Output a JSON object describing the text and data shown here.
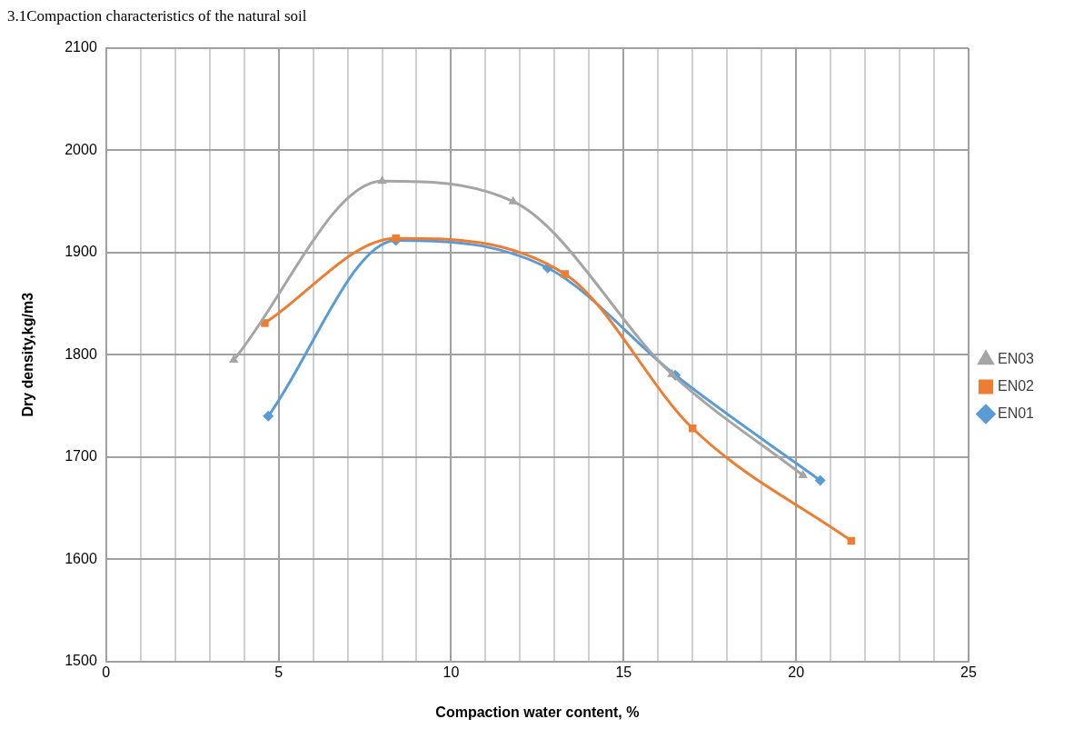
{
  "chart_data": {
    "type": "line",
    "title": "3.1Compaction characteristics of the natural soil",
    "xlabel": "Compaction water content, %",
    "ylabel": "Dry density,kg/m3",
    "xlim": [
      0,
      25
    ],
    "xticks": [
      0,
      {
        "value": 1,
        "label": null
      },
      {
        "value": 2,
        "label": null
      },
      {
        "value": 3,
        "label": null
      },
      {
        "value": 4,
        "label": null
      },
      5,
      {
        "value": 6,
        "label": null
      },
      {
        "value": 7,
        "label": null
      },
      {
        "value": 8,
        "label": null
      },
      {
        "value": 9,
        "label": null
      },
      10,
      {
        "value": 11,
        "label": null
      },
      {
        "value": 12,
        "label": null
      },
      {
        "value": 13,
        "label": null
      },
      {
        "value": 14,
        "label": null
      },
      15,
      {
        "value": 16,
        "label": null
      },
      {
        "value": 17,
        "label": null
      },
      {
        "value": 18,
        "label": null
      },
      {
        "value": 19,
        "label": null
      },
      20,
      {
        "value": 21,
        "label": null
      },
      {
        "value": 22,
        "label": null
      },
      {
        "value": 23,
        "label": null
      },
      {
        "value": 24,
        "label": null
      },
      25
    ],
    "ylim": [
      1500,
      2100
    ],
    "yticks": [
      1500,
      1600,
      1700,
      1800,
      1900,
      2000,
      2100
    ],
    "grid": true,
    "legend": "right",
    "series": [
      {
        "name": "EN01",
        "color": "#5b9bd5",
        "marker": "diamond",
        "x": [
          4.7,
          8.4,
          12.8,
          16.5,
          20.7
        ],
        "values": [
          1740,
          1912,
          1885,
          1780,
          1677
        ]
      },
      {
        "name": "EN02",
        "color": "#ed7d31",
        "marker": "square",
        "x": [
          4.6,
          8.4,
          13.3,
          17.0,
          21.6
        ],
        "values": [
          1831,
          1914,
          1879,
          1728,
          1618
        ]
      },
      {
        "name": "EN03",
        "color": "#a5a5a5",
        "marker": "triangle",
        "x": [
          3.7,
          8.0,
          11.8,
          16.4,
          20.2
        ],
        "values": [
          1795,
          1970,
          1950,
          1781,
          1682
        ]
      }
    ]
  }
}
